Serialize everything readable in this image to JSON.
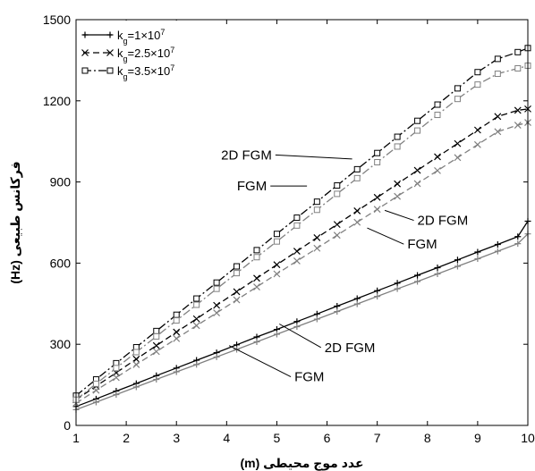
{
  "chart_data": {
    "type": "line",
    "xlabel": "عدد موج محیطی (m)",
    "ylabel": "فرکانس طبیعی (Hz)",
    "xlim": [
      1,
      10
    ],
    "ylim": [
      0,
      1500
    ],
    "x_ticks": [
      1,
      2,
      3,
      4,
      5,
      6,
      7,
      8,
      9,
      10
    ],
    "y_ticks": [
      0,
      300,
      600,
      900,
      1200,
      1500
    ],
    "grid": false,
    "legend_position": "top-left",
    "legend": [
      {
        "label": "k",
        "sub": "g",
        "post": "=1×10",
        "sup": "7",
        "marker": "plus",
        "dash": "solid"
      },
      {
        "label": "k",
        "sub": "g",
        "post": "=2.5×10",
        "sup": "7",
        "marker": "x",
        "dash": "dashed"
      },
      {
        "label": "k",
        "sub": "g",
        "post": "=3.5×10",
        "sup": "7",
        "marker": "square",
        "dash": "dashdot"
      }
    ],
    "series": [
      {
        "group": "k_g=1×10^7",
        "model": "2D FGM",
        "color": "#000000",
        "marker": "plus",
        "dash": "solid",
        "x": [
          1,
          1.4,
          1.8,
          2.2,
          2.6,
          3.0,
          3.4,
          3.8,
          4.2,
          4.6,
          5.0,
          5.4,
          5.8,
          6.2,
          6.6,
          7.0,
          7.4,
          7.8,
          8.2,
          8.6,
          9.0,
          9.4,
          9.8,
          10
        ],
        "y": [
          70,
          98,
          127,
          155,
          184,
          212,
          241,
          269,
          298,
          327,
          355,
          384,
          412,
          441,
          469,
          498,
          526,
          555,
          583,
          612,
          641,
          669,
          698,
          755
        ]
      },
      {
        "group": "k_g=1×10^7",
        "model": "FGM",
        "color": "#808080",
        "marker": "plus",
        "dash": "solid",
        "x": [
          1,
          1.4,
          1.8,
          2.2,
          2.6,
          3.0,
          3.4,
          3.8,
          4.2,
          4.6,
          5.0,
          5.4,
          5.8,
          6.2,
          6.6,
          7.0,
          7.4,
          7.8,
          8.2,
          8.6,
          9.0,
          9.4,
          9.8,
          10
        ],
        "y": [
          58,
          86,
          114,
          142,
          170,
          198,
          225,
          253,
          281,
          309,
          337,
          365,
          393,
          421,
          449,
          477,
          505,
          532,
          560,
          588,
          616,
          644,
          672,
          708
        ]
      },
      {
        "group": "k_g=2.5×10^7",
        "model": "2D FGM",
        "color": "#000000",
        "marker": "x",
        "dash": "dashed",
        "x": [
          1,
          1.4,
          1.8,
          2.2,
          2.6,
          3.0,
          3.4,
          3.8,
          4.2,
          4.6,
          5.0,
          5.4,
          5.8,
          6.2,
          6.6,
          7.0,
          7.4,
          7.8,
          8.2,
          8.6,
          9.0,
          9.4,
          9.8,
          10
        ],
        "y": [
          95,
          145,
          195,
          245,
          295,
          345,
          394,
          444,
          494,
          544,
          594,
          644,
          694,
          743,
          793,
          843,
          893,
          943,
          993,
          1042,
          1092,
          1142,
          1165,
          1170
        ]
      },
      {
        "group": "k_g=2.5×10^7",
        "model": "FGM",
        "color": "#808080",
        "marker": "x",
        "dash": "dashed",
        "x": [
          1,
          1.4,
          1.8,
          2.2,
          2.6,
          3.0,
          3.4,
          3.8,
          4.2,
          4.6,
          5.0,
          5.4,
          5.8,
          6.2,
          6.6,
          7.0,
          7.4,
          7.8,
          8.2,
          8.6,
          9.0,
          9.4,
          9.8,
          10
        ],
        "y": [
          82,
          130,
          177,
          225,
          273,
          321,
          369,
          416,
          464,
          512,
          560,
          608,
          655,
          703,
          751,
          799,
          847,
          894,
          942,
          990,
          1038,
          1086,
          1110,
          1120
        ]
      },
      {
        "group": "k_g=3.5×10^7",
        "model": "2D FGM",
        "color": "#000000",
        "marker": "square",
        "dash": "dashdot",
        "x": [
          1,
          1.4,
          1.8,
          2.2,
          2.6,
          3.0,
          3.4,
          3.8,
          4.2,
          4.6,
          5.0,
          5.4,
          5.8,
          6.2,
          6.6,
          7.0,
          7.4,
          7.8,
          8.2,
          8.6,
          9.0,
          9.4,
          9.8,
          10
        ],
        "y": [
          110,
          170,
          230,
          289,
          349,
          409,
          469,
          528,
          588,
          648,
          708,
          768,
          827,
          887,
          947,
          1007,
          1067,
          1126,
          1186,
          1246,
          1306,
          1355,
          1380,
          1395
        ]
      },
      {
        "group": "k_g=3.5×10^7",
        "model": "FGM",
        "color": "#808080",
        "marker": "square",
        "dash": "dashdot",
        "x": [
          1,
          1.4,
          1.8,
          2.2,
          2.6,
          3.0,
          3.4,
          3.8,
          4.2,
          4.6,
          5.0,
          5.4,
          5.8,
          6.2,
          6.6,
          7.0,
          7.4,
          7.8,
          8.2,
          8.6,
          9.0,
          9.4,
          9.8,
          10
        ],
        "y": [
          95,
          154,
          212,
          271,
          329,
          388,
          446,
          505,
          563,
          622,
          680,
          739,
          797,
          856,
          914,
          973,
          1031,
          1090,
          1148,
          1207,
          1260,
          1300,
          1320,
          1330
        ]
      }
    ],
    "annotations": [
      {
        "text": "2D FGM",
        "tx": 4.9,
        "ty": 1000,
        "ax": 6.5,
        "ay": 985,
        "anchor": "end"
      },
      {
        "text": "FGM",
        "tx": 4.8,
        "ty": 885,
        "ax": 5.6,
        "ay": 885,
        "anchor": "end"
      },
      {
        "text": "2D FGM",
        "tx": 7.8,
        "ty": 758,
        "ax": 7.15,
        "ay": 795,
        "anchor": "start"
      },
      {
        "text": "FGM",
        "tx": 7.6,
        "ty": 670,
        "ax": 6.8,
        "ay": 730,
        "anchor": "start"
      },
      {
        "text": "2D FGM",
        "tx": 5.95,
        "ty": 288,
        "ax": 5.05,
        "ay": 375,
        "anchor": "start"
      },
      {
        "text": "FGM",
        "tx": 5.35,
        "ty": 180,
        "ax": 4.05,
        "ay": 295,
        "anchor": "start"
      }
    ]
  }
}
